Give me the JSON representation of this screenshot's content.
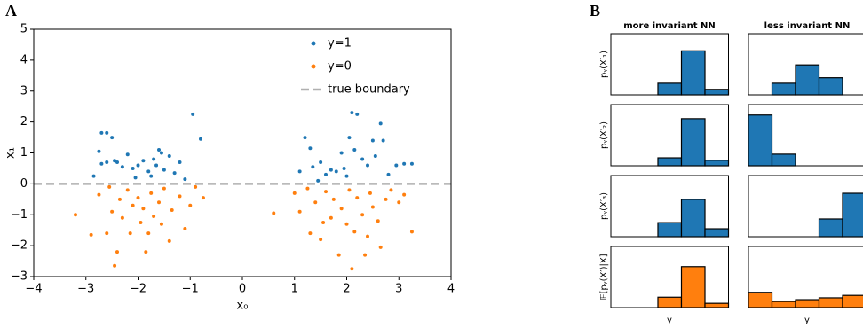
{
  "chart_data": [
    {
      "type": "scatter",
      "panel_label": "A",
      "xlabel": "x₀",
      "ylabel": "x₁",
      "xlim": [
        -4,
        4
      ],
      "ylim": [
        -3,
        5
      ],
      "xticks": [
        {
          "value": -4,
          "label": "−4"
        },
        {
          "value": -3,
          "label": "−3"
        },
        {
          "value": -2,
          "label": "−2"
        },
        {
          "value": -1,
          "label": "−1"
        },
        0,
        1,
        2,
        3,
        4
      ],
      "yticks": [
        {
          "value": -3,
          "label": "−3"
        },
        {
          "value": -2,
          "label": "−2"
        },
        {
          "value": -1,
          "label": "−1"
        },
        0,
        1,
        2,
        3,
        4,
        5
      ],
      "legend": "upper right",
      "boundary": {
        "name": "true boundary",
        "y": 0,
        "color": "#b0b0b0"
      },
      "series": [
        {
          "name": "y=1",
          "color": "#1f77b4",
          "x": [
            -2.7,
            -2.6,
            -2.5,
            -2.75,
            -2.7,
            -2.6,
            -2.45,
            -2.4,
            -2.3,
            -2.2,
            -2.1,
            -2.0,
            -1.9,
            -1.8,
            -1.7,
            -1.6,
            -1.55,
            -1.5,
            -1.4,
            -1.3,
            -1.2,
            -1.1,
            -0.95,
            -0.8,
            -2.85,
            -1.65,
            -2.05,
            -1.75,
            1.1,
            1.2,
            1.3,
            1.35,
            1.5,
            1.6,
            1.7,
            1.8,
            1.9,
            1.95,
            2.05,
            2.1,
            2.15,
            2.2,
            2.3,
            2.4,
            2.5,
            2.55,
            2.65,
            2.7,
            2.8,
            2.95,
            3.1,
            3.25,
            2.0,
            1.45
          ],
          "values": [
            1.65,
            1.65,
            1.5,
            1.05,
            0.65,
            0.7,
            0.75,
            0.7,
            0.55,
            0.95,
            0.5,
            0.6,
            0.75,
            0.4,
            0.8,
            1.1,
            1.0,
            0.45,
            0.9,
            0.35,
            0.7,
            0.15,
            2.25,
            1.45,
            0.25,
            0.6,
            0.2,
            0.25,
            0.4,
            1.5,
            1.15,
            0.55,
            0.7,
            0.3,
            0.45,
            0.4,
            1.0,
            0.5,
            1.5,
            2.3,
            1.1,
            2.25,
            0.8,
            0.6,
            1.4,
            0.9,
            1.95,
            1.4,
            0.3,
            0.6,
            0.65,
            0.65,
            0.25,
            0.1
          ]
        },
        {
          "name": "y=0",
          "color": "#ff7f0e",
          "x": [
            -3.2,
            -2.9,
            -2.75,
            -2.6,
            -2.5,
            -2.45,
            -2.4,
            -2.35,
            -2.3,
            -2.2,
            -2.15,
            -2.1,
            -2.0,
            -1.95,
            -1.9,
            -1.8,
            -1.75,
            -1.7,
            -1.6,
            -1.55,
            -1.5,
            -1.4,
            -1.35,
            -1.2,
            -1.1,
            -1.0,
            -0.9,
            -0.75,
            -2.55,
            -1.85,
            0.6,
            1.0,
            1.1,
            1.25,
            1.3,
            1.4,
            1.5,
            1.6,
            1.7,
            1.75,
            1.85,
            1.9,
            2.0,
            2.05,
            2.1,
            2.15,
            2.2,
            2.3,
            2.4,
            2.45,
            2.5,
            2.6,
            2.65,
            2.75,
            2.85,
            3.0,
            3.1,
            3.25,
            1.55,
            2.35
          ],
          "values": [
            -1.0,
            -1.65,
            -0.35,
            -1.6,
            -0.9,
            -2.65,
            -2.2,
            -0.5,
            -1.1,
            -0.2,
            -1.6,
            -0.7,
            -0.45,
            -1.25,
            -0.8,
            -1.6,
            -0.3,
            -1.05,
            -0.6,
            -1.3,
            -0.15,
            -1.85,
            -0.85,
            -0.4,
            -1.45,
            -0.7,
            -0.1,
            -0.45,
            -0.1,
            -2.2,
            -0.95,
            -0.3,
            -0.9,
            -0.15,
            -1.6,
            -0.6,
            -1.8,
            -0.25,
            -1.1,
            -0.5,
            -2.3,
            -0.8,
            -1.3,
            -0.2,
            -2.75,
            -1.55,
            -0.45,
            -1.0,
            -1.7,
            -0.3,
            -0.75,
            -1.2,
            -2.05,
            -0.5,
            -0.2,
            -0.6,
            -0.35,
            -1.55,
            -1.25,
            -2.3
          ]
        }
      ]
    },
    {
      "type": "bar",
      "panel_label": "B",
      "xlabel": "y",
      "ylim": [
        0,
        1
      ],
      "column_titles": [
        "more invariant NN",
        "less invariant NN"
      ],
      "rows": [
        {
          "label": "pᵧ(X′₁)",
          "color": "#1f77b4",
          "cols": [
            [
              0,
              0,
              0.19,
              0.72,
              0.09
            ],
            [
              0,
              0.19,
              0.49,
              0.28,
              0
            ]
          ]
        },
        {
          "label": "pᵧ(X′₂)",
          "color": "#1f77b4",
          "cols": [
            [
              0,
              0,
              0.13,
              0.77,
              0.09
            ],
            [
              0.83,
              0.19,
              0,
              0,
              0
            ]
          ]
        },
        {
          "label": "pᵧ(X′₃)",
          "color": "#1f77b4",
          "cols": [
            [
              0,
              0,
              0.23,
              0.61,
              0.13
            ],
            [
              0,
              0,
              0,
              0.29,
              0.71
            ]
          ]
        },
        {
          "label": "𝔼[pᵧ(X′)|X]",
          "color": "#ff7f0e",
          "cols": [
            [
              0,
              0,
              0.17,
              0.67,
              0.07
            ],
            [
              0.25,
              0.1,
              0.13,
              0.16,
              0.2
            ]
          ]
        }
      ]
    }
  ]
}
